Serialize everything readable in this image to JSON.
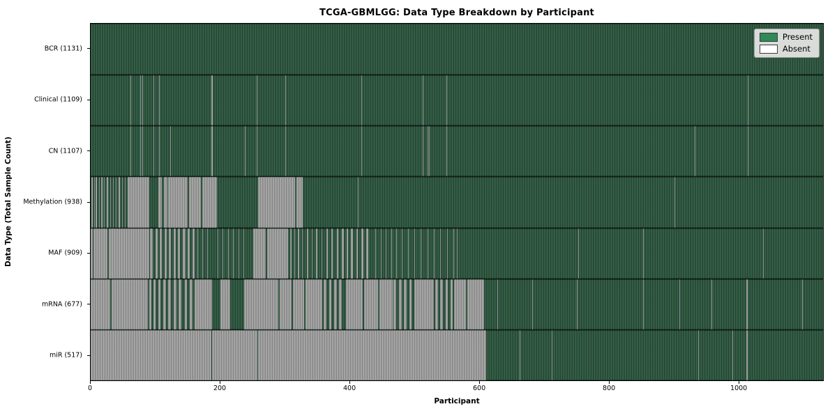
{
  "title": "TCGA-GBMLGG: Data Type Breakdown by Participant",
  "chart_data": {
    "type": "heatmap",
    "title": "TCGA-GBMLGG: Data Type Breakdown by Participant",
    "xlabel": "Participant",
    "ylabel": "Data Type (Total Sample Count)",
    "x_ticks": [
      0,
      200,
      400,
      600,
      800,
      1000
    ],
    "xlim": [
      0,
      1131
    ],
    "n_participants": 1131,
    "grid": false,
    "legend": {
      "position": "upper right",
      "entries": [
        {
          "label": "Present",
          "color": "#2e8b57"
        },
        {
          "label": "Absent",
          "color": "#ffffff"
        }
      ]
    },
    "colors": {
      "present_dark": "#20402e",
      "present_light": "#3d6950",
      "absent_dark": "#7f7f7f",
      "absent_light": "#b3b3b3"
    },
    "rows": [
      {
        "name": "BCR",
        "total": 1131,
        "label": "BCR (1131)",
        "absent_ranges": []
      },
      {
        "name": "Clinical",
        "total": 1109,
        "label": "Clinical (1109)",
        "absent_ranges": [
          [
            61,
            62
          ],
          [
            77,
            78
          ],
          [
            80,
            81
          ],
          [
            97,
            98
          ],
          [
            106,
            107
          ],
          [
            186,
            188
          ],
          [
            256,
            257
          ],
          [
            300,
            302
          ],
          [
            355,
            356
          ],
          [
            418,
            419
          ],
          [
            513,
            514
          ],
          [
            549,
            550
          ],
          [
            872,
            873
          ],
          [
            1015,
            1016
          ]
        ]
      },
      {
        "name": "CN",
        "total": 1107,
        "label": "CN (1107)",
        "absent_ranges": [
          [
            61,
            62
          ],
          [
            77,
            78
          ],
          [
            80,
            81
          ],
          [
            97,
            98
          ],
          [
            106,
            107
          ],
          [
            123,
            124
          ],
          [
            186,
            188
          ],
          [
            238,
            239
          ],
          [
            256,
            257
          ],
          [
            300,
            302
          ],
          [
            355,
            356
          ],
          [
            418,
            419
          ],
          [
            513,
            514
          ],
          [
            520,
            521
          ],
          [
            522,
            523
          ],
          [
            549,
            550
          ],
          [
            933,
            934
          ],
          [
            1015,
            1016
          ]
        ]
      },
      {
        "name": "Methylation",
        "total": 938,
        "label": "Methylation (938)",
        "absent_ranges": [
          [
            1,
            3
          ],
          [
            5,
            6
          ],
          [
            8,
            10
          ],
          [
            13,
            14
          ],
          [
            16,
            18
          ],
          [
            21,
            22
          ],
          [
            25,
            27
          ],
          [
            30,
            31
          ],
          [
            34,
            36
          ],
          [
            39,
            40
          ],
          [
            43,
            45
          ],
          [
            49,
            50
          ],
          [
            53,
            54
          ],
          [
            57,
            90
          ],
          [
            104,
            110
          ],
          [
            113,
            118
          ],
          [
            120,
            150
          ],
          [
            152,
            170
          ],
          [
            172,
            195
          ],
          [
            258,
            316
          ],
          [
            318,
            327
          ],
          [
            413,
            414
          ],
          [
            902,
            903
          ]
        ]
      },
      {
        "name": "MAF",
        "total": 909,
        "label": "MAF (909)",
        "absent_ranges": [
          [
            0,
            3
          ],
          [
            4,
            26
          ],
          [
            28,
            90
          ],
          [
            92,
            96
          ],
          [
            100,
            103
          ],
          [
            107,
            110
          ],
          [
            114,
            117
          ],
          [
            121,
            124
          ],
          [
            128,
            131
          ],
          [
            135,
            138
          ],
          [
            142,
            146
          ],
          [
            150,
            153
          ],
          [
            157,
            160
          ],
          [
            165,
            166
          ],
          [
            172,
            173
          ],
          [
            180,
            181
          ],
          [
            188,
            189
          ],
          [
            196,
            197
          ],
          [
            204,
            205
          ],
          [
            212,
            213
          ],
          [
            220,
            221
          ],
          [
            228,
            229
          ],
          [
            236,
            237
          ],
          [
            244,
            245
          ],
          [
            251,
            270
          ],
          [
            273,
            305
          ],
          [
            308,
            310
          ],
          [
            314,
            316
          ],
          [
            320,
            322
          ],
          [
            326,
            328
          ],
          [
            334,
            336
          ],
          [
            341,
            343
          ],
          [
            348,
            350
          ],
          [
            356,
            358
          ],
          [
            364,
            366
          ],
          [
            372,
            374
          ],
          [
            380,
            382
          ],
          [
            388,
            391
          ],
          [
            395,
            398
          ],
          [
            402,
            405
          ],
          [
            410,
            413
          ],
          [
            418,
            421
          ],
          [
            426,
            429
          ],
          [
            440,
            441
          ],
          [
            448,
            449
          ],
          [
            456,
            457
          ],
          [
            464,
            465
          ],
          [
            472,
            473
          ],
          [
            480,
            481
          ],
          [
            490,
            491
          ],
          [
            500,
            501
          ],
          [
            510,
            511
          ],
          [
            520,
            521
          ],
          [
            530,
            531
          ],
          [
            540,
            541
          ],
          [
            550,
            551
          ],
          [
            560,
            561
          ],
          [
            566,
            567
          ],
          [
            753,
            754
          ],
          [
            853,
            854
          ],
          [
            1038,
            1039
          ]
        ]
      },
      {
        "name": "mRNA",
        "total": 677,
        "label": "mRNA (677)",
        "absent_ranges": [
          [
            0,
            30
          ],
          [
            32,
            88
          ],
          [
            90,
            94
          ],
          [
            97,
            100
          ],
          [
            104,
            108
          ],
          [
            112,
            116
          ],
          [
            120,
            124
          ],
          [
            128,
            132
          ],
          [
            136,
            140
          ],
          [
            145,
            149
          ],
          [
            153,
            157
          ],
          [
            161,
            187
          ],
          [
            200,
            215
          ],
          [
            237,
            290
          ],
          [
            292,
            310
          ],
          [
            312,
            330
          ],
          [
            332,
            358
          ],
          [
            360,
            364
          ],
          [
            368,
            372
          ],
          [
            376,
            380
          ],
          [
            384,
            388
          ],
          [
            394,
            420
          ],
          [
            422,
            444
          ],
          [
            446,
            466
          ],
          [
            468,
            472
          ],
          [
            476,
            480
          ],
          [
            484,
            488
          ],
          [
            492,
            496
          ],
          [
            500,
            530
          ],
          [
            532,
            536
          ],
          [
            540,
            544
          ],
          [
            548,
            552
          ],
          [
            556,
            559
          ],
          [
            561,
            580
          ],
          [
            582,
            608
          ],
          [
            628,
            629
          ],
          [
            682,
            683
          ],
          [
            751,
            752
          ],
          [
            853,
            854
          ],
          [
            909,
            910
          ],
          [
            959,
            960
          ],
          [
            1013,
            1015
          ],
          [
            1099,
            1100
          ]
        ]
      },
      {
        "name": "miR",
        "total": 517,
        "label": "miR (517)",
        "absent_ranges": [
          [
            0,
            186
          ],
          [
            187,
            257
          ],
          [
            258,
            611
          ],
          [
            662,
            663
          ],
          [
            712,
            713
          ],
          [
            938,
            939
          ],
          [
            991,
            992
          ],
          [
            1013,
            1015
          ]
        ]
      }
    ]
  }
}
